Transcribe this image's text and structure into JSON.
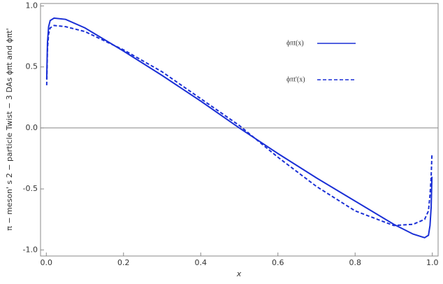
{
  "chart_data": {
    "type": "line",
    "xlabel": "x",
    "ylabel": "π − meson' s 2 − particle Twist − 3 DAs ϕπt and ϕπt'",
    "series": [
      {
        "name": "ϕπt(x)",
        "color": "#1a2fd6",
        "dash": "solid",
        "x": [
          0.001,
          0.003,
          0.006,
          0.01,
          0.02,
          0.05,
          0.1,
          0.2,
          0.3,
          0.4,
          0.5,
          0.6,
          0.7,
          0.8,
          0.9,
          0.95,
          0.98,
          0.99,
          0.994,
          0.997,
          0.999
        ],
        "values": [
          0.4,
          0.7,
          0.83,
          0.88,
          0.9,
          0.89,
          0.82,
          0.63,
          0.43,
          0.22,
          0.0,
          -0.21,
          -0.41,
          -0.6,
          -0.79,
          -0.87,
          -0.9,
          -0.88,
          -0.8,
          -0.65,
          -0.4
        ]
      },
      {
        "name": "ϕπt'(x)",
        "color": "#1a2fd6",
        "dash": "dashed",
        "x": [
          0.001,
          0.003,
          0.006,
          0.01,
          0.02,
          0.05,
          0.1,
          0.2,
          0.3,
          0.4,
          0.5,
          0.6,
          0.7,
          0.8,
          0.9,
          0.95,
          0.98,
          0.99,
          0.994,
          0.997,
          0.999
        ],
        "values": [
          0.35,
          0.65,
          0.77,
          0.82,
          0.84,
          0.83,
          0.79,
          0.64,
          0.46,
          0.24,
          0.02,
          -0.24,
          -0.48,
          -0.68,
          -0.8,
          -0.79,
          -0.75,
          -0.68,
          -0.55,
          -0.4,
          -0.22
        ]
      }
    ],
    "xlim": [
      -0.015,
      1.015
    ],
    "ylim": [
      -1.05,
      1.02
    ],
    "xticks": [
      {
        "value": 0,
        "label": "0.0"
      },
      0.2,
      0.4,
      0.6,
      0.8,
      {
        "value": 1,
        "label": "1.0"
      }
    ],
    "yticks": [
      {
        "value": -1,
        "label": "-1.0"
      },
      -0.5,
      {
        "value": 0,
        "label": "0.0"
      },
      0.5,
      {
        "value": 1,
        "label": "1.0"
      }
    ]
  }
}
